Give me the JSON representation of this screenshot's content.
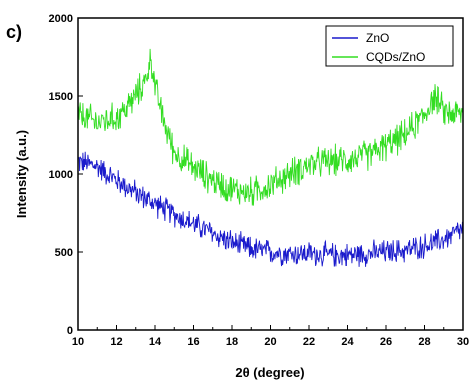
{
  "panel_label": "c)",
  "chart_data": {
    "type": "line",
    "title": "",
    "xlabel": "2θ (degree)",
    "ylabel": "Intensity (a.u.)",
    "xlim": [
      10,
      30
    ],
    "ylim": [
      0,
      2000
    ],
    "x_ticks": [
      10,
      12,
      14,
      16,
      18,
      20,
      22,
      24,
      26,
      28,
      30
    ],
    "y_ticks": [
      0,
      500,
      1000,
      1500,
      2000
    ],
    "grid": false,
    "legend_position": "top-right",
    "noise_note": "Dense jagged noisy XRD traces; key-point envelope shown, noise rendered procedurally",
    "series": [
      {
        "name": "ZnO",
        "color": "#1a1acc",
        "x": [
          10,
          11,
          12,
          13,
          14,
          15,
          16,
          17,
          18,
          19,
          20,
          21,
          22,
          23,
          24,
          25,
          26,
          27,
          28,
          29,
          30
        ],
        "values": [
          1080,
          1050,
          960,
          880,
          810,
          740,
          680,
          620,
          560,
          520,
          500,
          490,
          490,
          480,
          480,
          490,
          500,
          510,
          540,
          580,
          650
        ],
        "noise_amplitude": 80
      },
      {
        "name": "CQDs/ZnO",
        "color": "#33dd22",
        "x": [
          10,
          11,
          12,
          12.5,
          13,
          13.5,
          13.8,
          14,
          14.5,
          15,
          16,
          17,
          18,
          19,
          20,
          21,
          22,
          23,
          24,
          25,
          26,
          27,
          28,
          28.5,
          29,
          30
        ],
        "values": [
          1380,
          1330,
          1360,
          1420,
          1500,
          1600,
          1740,
          1560,
          1320,
          1140,
          1040,
          960,
          900,
          880,
          930,
          1000,
          1060,
          1080,
          1090,
          1120,
          1180,
          1250,
          1380,
          1500,
          1400,
          1380
        ],
        "noise_amplitude": 100
      }
    ]
  }
}
